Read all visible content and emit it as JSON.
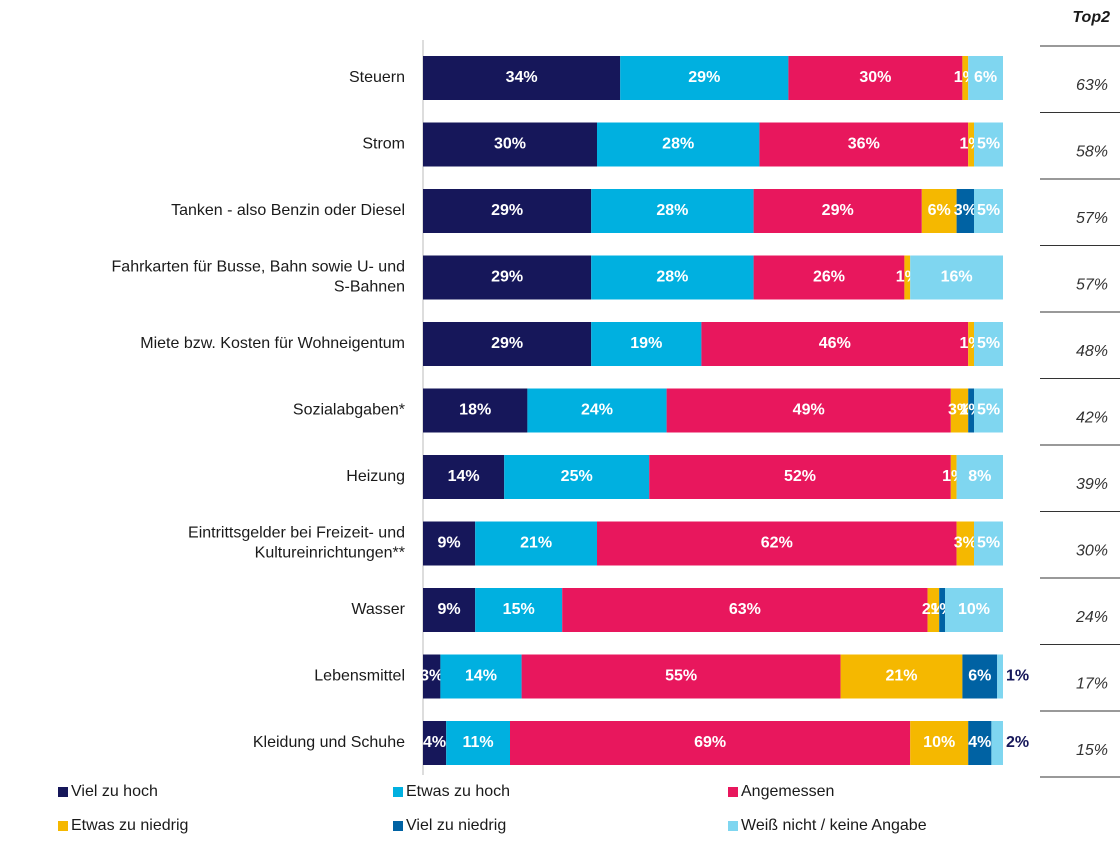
{
  "chart_data": {
    "type": "stacked-bar-horizontal",
    "categories": [
      "Steuern",
      "Strom",
      "Tanken - also Benzin oder Diesel",
      "Fahrkarten für Busse, Bahn sowie U- und\nS-Bahnen",
      "Miete bzw. Kosten für Wohneigentum",
      "Sozialabgaben*",
      "Heizung",
      "Eintrittsgelder bei Freizeit- und\nKultureinrichtungen**",
      "Wasser",
      "Lebensmittel",
      "Kleidung und Schuhe"
    ],
    "series": [
      {
        "name": "Viel zu hoch",
        "color": "#16175a",
        "values": [
          34,
          30,
          29,
          29,
          29,
          18,
          14,
          9,
          9,
          3,
          4
        ],
        "value_labels": [
          "34%",
          "30%",
          "29%",
          "29%",
          "29%",
          "18%",
          "14%",
          "9%",
          "9%",
          "3%",
          "4%"
        ]
      },
      {
        "name": "Etwas zu hoch",
        "color": "#00b0e0",
        "values": [
          29,
          28,
          28,
          28,
          19,
          24,
          25,
          21,
          15,
          14,
          11
        ],
        "value_labels": [
          "29%",
          "28%",
          "28%",
          "28%",
          "19%",
          "24%",
          "25%",
          "21%",
          "15%",
          "14%",
          "11%"
        ]
      },
      {
        "name": "Angemessen",
        "color": "#e8175d",
        "values": [
          30,
          36,
          29,
          26,
          46,
          49,
          52,
          62,
          63,
          55,
          69
        ],
        "value_labels": [
          "30%",
          "36%",
          "29%",
          "26%",
          "46%",
          "49%",
          "52%",
          "62%",
          "63%",
          "55%",
          "69%"
        ]
      },
      {
        "name": "Etwas zu niedrig",
        "color": "#f5b800",
        "values": [
          1,
          1,
          6,
          1,
          1,
          3,
          1,
          3,
          2,
          21,
          10
        ],
        "value_labels": [
          "1%",
          "1%",
          "6%",
          "1%",
          "1%",
          "3%",
          "1%",
          "3%",
          "2%",
          "21%",
          "10%"
        ]
      },
      {
        "name": "Viel zu niedrig",
        "color": "#0062a3",
        "values": [
          null,
          null,
          3,
          null,
          null,
          1,
          null,
          null,
          1,
          6,
          4
        ],
        "value_labels": [
          null,
          null,
          "3%",
          null,
          null,
          "1%",
          null,
          null,
          "1%",
          "6%",
          "4%"
        ]
      },
      {
        "name": "Weiß nicht / keine Angabe",
        "color": "#7fd6f0",
        "values": [
          6,
          5,
          5,
          16,
          5,
          5,
          8,
          5,
          10,
          1,
          2
        ],
        "value_labels": [
          "6%",
          "5%",
          "5%",
          "16%",
          "5%",
          "5%",
          "8%",
          "5%",
          "10%",
          "1%",
          "2%"
        ]
      }
    ],
    "top2": {
      "title": "Top2",
      "values": [
        63,
        58,
        57,
        57,
        48,
        42,
        39,
        30,
        24,
        17,
        15
      ],
      "value_labels": [
        "63%",
        "58%",
        "57%",
        "57%",
        "48%",
        "42%",
        "39%",
        "30%",
        "24%",
        "17%",
        "15%"
      ]
    }
  }
}
